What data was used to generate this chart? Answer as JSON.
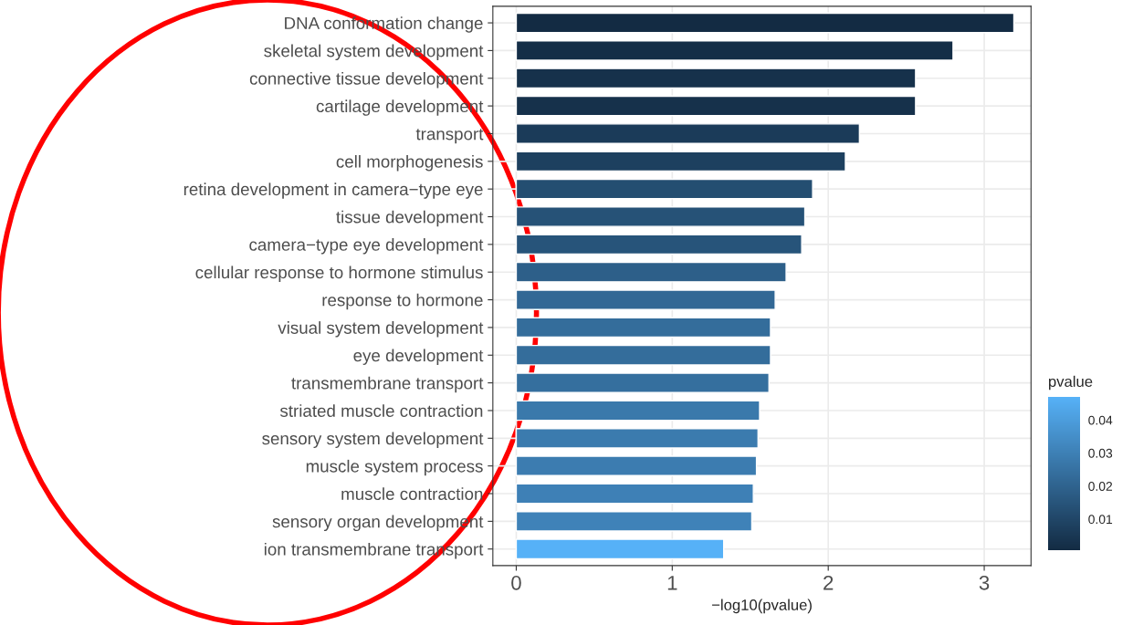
{
  "chart_data": {
    "type": "bar",
    "orientation": "horizontal",
    "xlabel": "−log10(pvalue)",
    "clabel": "pvalue",
    "categories": [
      "DNA conformation change",
      "skeletal system development",
      "connective tissue development",
      "cartilage development",
      "transport",
      "cell morphogenesis",
      "retina development in camera−type eye",
      "tissue development",
      "camera−type eye development",
      "cellular response to hormone stimulus",
      "response to hormone",
      "visual system development",
      "eye development",
      "transmembrane transport",
      "striated muscle contraction",
      "sensory system development",
      "muscle system process",
      "muscle contraction",
      "sensory organ development",
      "ion transmembrane transport"
    ],
    "values": [
      3.19,
      2.8,
      2.56,
      2.56,
      2.2,
      2.11,
      1.9,
      1.85,
      1.83,
      1.73,
      1.66,
      1.63,
      1.63,
      1.62,
      1.56,
      1.55,
      1.54,
      1.52,
      1.51,
      1.33
    ],
    "colors": [
      "#132B43",
      "#142E47",
      "#16314B",
      "#16314B",
      "#1B3B59",
      "#1D405F",
      "#244E71",
      "#265277",
      "#27547A",
      "#2D5F89",
      "#326895",
      "#346D9B",
      "#346D9B",
      "#356F9E",
      "#3A79AB",
      "#3B7BAE",
      "#3C7CB0",
      "#3E80B6",
      "#3F82B8",
      "#56B1F7"
    ],
    "xlim": [
      -0.15,
      3.3
    ],
    "xticks": [
      0,
      1,
      2,
      3
    ],
    "clim": [
      0.00065,
      0.047
    ],
    "cticks": [
      0.01,
      0.02,
      0.03,
      0.04
    ],
    "grid": true
  }
}
